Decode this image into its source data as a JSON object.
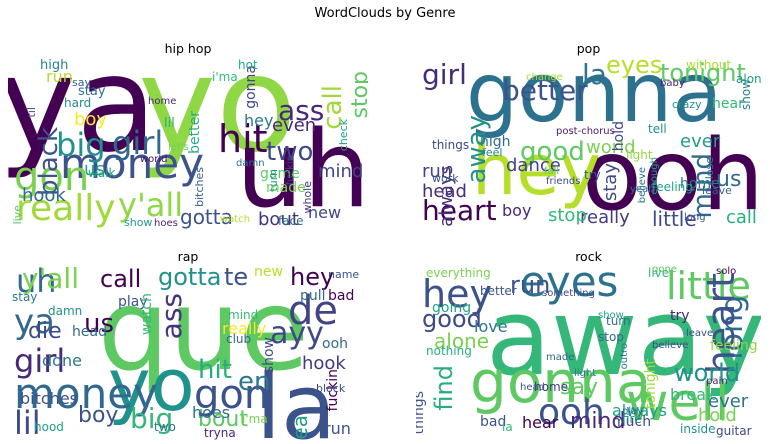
{
  "title": "WordClouds by Genre",
  "panels": [
    {
      "title": "hip hop",
      "words": [
        {
          "t": "yo",
          "c": "#8fd744"
        },
        {
          "t": "ya",
          "c": "#440154"
        },
        {
          "t": "uh",
          "c": "#440154"
        },
        {
          "t": "money",
          "c": "#3b528b"
        },
        {
          "t": "gon",
          "c": "#7ad151"
        },
        {
          "t": "big",
          "c": "#21918c"
        },
        {
          "t": "girl",
          "c": "#31688e"
        },
        {
          "t": "hit",
          "c": "#440154"
        },
        {
          "t": "really",
          "c": "#a0da39"
        },
        {
          "t": "y'all",
          "c": "#8fd744"
        },
        {
          "t": "black",
          "c": "#3b528b"
        },
        {
          "t": "call",
          "c": "#a0da39"
        },
        {
          "t": "stop",
          "c": "#5ec962"
        },
        {
          "t": "ass",
          "c": "#482878"
        },
        {
          "t": "two",
          "c": "#3e4989"
        },
        {
          "t": "hook",
          "c": "#31688e"
        },
        {
          "t": "gotta",
          "c": "#3b528b"
        },
        {
          "t": "bout",
          "c": "#46327e"
        },
        {
          "t": "new",
          "c": "#3e4989"
        },
        {
          "t": "even",
          "c": "#482878"
        },
        {
          "t": "boy",
          "c": "#fde725"
        },
        {
          "t": "mind",
          "c": "#414487"
        },
        {
          "t": "better",
          "c": "#27ad81"
        },
        {
          "t": "us",
          "c": "#1f9e89"
        },
        {
          "t": "high",
          "c": "#26828e"
        },
        {
          "t": "run",
          "c": "#b5de2b"
        },
        {
          "t": "i'ma",
          "c": "#35b779"
        },
        {
          "t": "gonna",
          "c": "#404688"
        },
        {
          "t": "hey",
          "c": "#2a788e"
        },
        {
          "t": "game",
          "c": "#5ec962"
        },
        {
          "t": "made",
          "c": "#7ad151"
        },
        {
          "t": "hot",
          "c": "#22a884"
        },
        {
          "t": "walk",
          "c": "#20a486"
        },
        {
          "t": "check",
          "c": "#1fa188"
        },
        {
          "t": "face",
          "c": "#2c728e"
        },
        {
          "t": "show",
          "c": "#1f9a8a"
        },
        {
          "t": "hoes",
          "c": "#481f70"
        },
        {
          "t": "hard",
          "c": "#238a8d"
        },
        {
          "t": "stay",
          "c": "#2d708e"
        },
        {
          "t": "home",
          "c": "#482475"
        },
        {
          "t": "lil",
          "c": "#29af7f"
        },
        {
          "t": "til",
          "c": "#3f4889"
        },
        {
          "t": "live",
          "c": "#52c569"
        },
        {
          "t": "say",
          "c": "#34608d"
        },
        {
          "t": "world",
          "c": "#471365"
        },
        {
          "t": "whole",
          "c": "#443983"
        },
        {
          "t": "bitches",
          "c": "#355f8d"
        },
        {
          "t": "damn",
          "c": "#2e6f8e"
        },
        {
          "t": "watch",
          "c": "#b8de29"
        },
        {
          "t": "let's",
          "c": "#6ece58"
        },
        {
          "t": "turn",
          "c": "#1e9b8a"
        },
        {
          "t": "fuckin",
          "c": "#424086"
        }
      ]
    },
    {
      "title": "pop",
      "words": [
        {
          "t": "gonna",
          "c": "#2c728e"
        },
        {
          "t": "ooh",
          "c": "#440154"
        },
        {
          "t": "hey",
          "c": "#b5de2b"
        },
        {
          "t": "girl",
          "c": "#472c7a"
        },
        {
          "t": "la",
          "c": "#2c728e"
        },
        {
          "t": "better",
          "c": "#3b528b"
        },
        {
          "t": "eyes",
          "c": "#b8de29"
        },
        {
          "t": "tonight",
          "c": "#5ec962"
        },
        {
          "t": "heart",
          "c": "#440154"
        },
        {
          "t": "boy",
          "c": "#482878"
        },
        {
          "t": "good",
          "c": "#5ec962"
        },
        {
          "t": "world",
          "c": "#7ad151"
        },
        {
          "t": "away",
          "c": "#21918c"
        },
        {
          "t": "always",
          "c": "#46327e"
        },
        {
          "t": "mind",
          "c": "#31688e"
        },
        {
          "t": "ever",
          "c": "#1f9e89"
        },
        {
          "t": "little",
          "c": "#3e4989"
        },
        {
          "t": "call",
          "c": "#27ad81"
        },
        {
          "t": "really",
          "c": "#443983"
        },
        {
          "t": "stop",
          "c": "#35b779"
        },
        {
          "t": "dance",
          "c": "#414487"
        },
        {
          "t": "hold",
          "c": "#3f4889"
        },
        {
          "t": "home",
          "c": "#2a788e"
        },
        {
          "t": "us",
          "c": "#31688e"
        },
        {
          "t": "run",
          "c": "#404688"
        },
        {
          "t": "head",
          "c": "#472d7b"
        },
        {
          "t": "stay",
          "c": "#3e4a89"
        },
        {
          "t": "long",
          "c": "#38588c"
        },
        {
          "t": "high",
          "c": "#2e6f8e"
        },
        {
          "t": "hear",
          "c": "#35b779"
        },
        {
          "t": "feeling",
          "c": "#20a486"
        },
        {
          "t": "light",
          "c": "#95d840"
        },
        {
          "t": "without",
          "c": "#a8db34"
        },
        {
          "t": "baby",
          "c": "#482173"
        },
        {
          "t": "things",
          "c": "#3f4788"
        },
        {
          "t": "post-chorus",
          "c": "#481a6c"
        },
        {
          "t": "believe",
          "c": "#2b748e"
        },
        {
          "t": "enough",
          "c": "#1fa187"
        },
        {
          "t": "try",
          "c": "#355f8d"
        },
        {
          "t": "close",
          "c": "#2a788e"
        },
        {
          "t": "tell",
          "c": "#21918c"
        },
        {
          "t": "leave",
          "c": "#34618d"
        },
        {
          "t": "alone",
          "c": "#1e9b8a"
        },
        {
          "t": "show",
          "c": "#277f8e"
        },
        {
          "t": "fall",
          "c": "#65cb5e"
        },
        {
          "t": "crazy",
          "c": "#20928c"
        },
        {
          "t": "feel",
          "c": "#25848e"
        },
        {
          "t": "work",
          "c": "#39568c"
        },
        {
          "t": "change",
          "c": "#a2da37"
        },
        {
          "t": "yeah",
          "c": "#2d718e"
        },
        {
          "t": "friends",
          "c": "#3d4d8a"
        }
      ]
    },
    {
      "title": "rap",
      "words": [
        {
          "t": "que",
          "c": "#5ec962"
        },
        {
          "t": "yo",
          "c": "#21918c"
        },
        {
          "t": "la",
          "c": "#3b528b"
        },
        {
          "t": "ya",
          "c": "#31688e"
        },
        {
          "t": "money",
          "c": "#31688e"
        },
        {
          "t": "uh",
          "c": "#31688e"
        },
        {
          "t": "y'all",
          "c": "#7ad151"
        },
        {
          "t": "call",
          "c": "#440154"
        },
        {
          "t": "gotta",
          "c": "#21918c"
        },
        {
          "t": "girl",
          "c": "#482878"
        },
        {
          "t": "lil",
          "c": "#3e4989"
        },
        {
          "t": "boy",
          "c": "#3b528b"
        },
        {
          "t": "big",
          "c": "#35b779"
        },
        {
          "t": "bout",
          "c": "#5ec962"
        },
        {
          "t": "hit",
          "c": "#27ad81"
        },
        {
          "t": "gon",
          "c": "#3b528b"
        },
        {
          "t": "ayy",
          "c": "#3e4989"
        },
        {
          "t": "de",
          "c": "#414487"
        },
        {
          "t": "en",
          "c": "#2a788e"
        },
        {
          "t": "hey",
          "c": "#440154"
        },
        {
          "t": "lea",
          "c": "#1f9e89"
        },
        {
          "t": "ass",
          "c": "#46327e"
        },
        {
          "t": "te",
          "c": "#3b528b"
        },
        {
          "t": "us",
          "c": "#440154"
        },
        {
          "t": "die",
          "c": "#3e4989"
        },
        {
          "t": "hoes",
          "c": "#2c728e"
        },
        {
          "t": "hook",
          "c": "#443983"
        },
        {
          "t": "new",
          "c": "#b5de2b"
        },
        {
          "t": "really",
          "c": "#fde725"
        },
        {
          "t": "bitches",
          "c": "#3b528b"
        },
        {
          "t": "done",
          "c": "#2a788e"
        },
        {
          "t": "head",
          "c": "#31688e"
        },
        {
          "t": "play",
          "c": "#3b528b"
        },
        {
          "t": "watch",
          "c": "#35b779"
        },
        {
          "t": "hood",
          "c": "#20a486"
        },
        {
          "t": "fuckin",
          "c": "#440154"
        },
        {
          "t": "tryna",
          "c": "#482878"
        },
        {
          "t": "show",
          "c": "#3e4989"
        },
        {
          "t": "ooh",
          "c": "#31688e"
        },
        {
          "t": "run",
          "c": "#3b528b"
        },
        {
          "t": "i'ma",
          "c": "#7ad151"
        },
        {
          "t": "damn",
          "c": "#21918c"
        },
        {
          "t": "two",
          "c": "#2c728e"
        },
        {
          "t": "pull",
          "c": "#31688e"
        },
        {
          "t": "bad",
          "c": "#440154"
        },
        {
          "t": "mind",
          "c": "#35b779"
        },
        {
          "t": "block",
          "c": "#3e4989"
        },
        {
          "t": "stay",
          "c": "#2a788e"
        },
        {
          "t": "name",
          "c": "#3b528b"
        },
        {
          "t": "club",
          "c": "#31688e"
        }
      ]
    },
    {
      "title": "rock",
      "words": [
        {
          "t": "away",
          "c": "#35b779"
        },
        {
          "t": "gonna",
          "c": "#5ec962"
        },
        {
          "t": "well",
          "c": "#5ec962"
        },
        {
          "t": "eyes",
          "c": "#2c728e"
        },
        {
          "t": "hey",
          "c": "#3b528b"
        },
        {
          "t": "little",
          "c": "#5ec962"
        },
        {
          "t": "long",
          "c": "#31688e"
        },
        {
          "t": "heart",
          "c": "#3b528b"
        },
        {
          "t": "ooh",
          "c": "#3b528b"
        },
        {
          "t": "good",
          "c": "#3e4989"
        },
        {
          "t": "world",
          "c": "#21918c"
        },
        {
          "t": "run",
          "c": "#3b528b"
        },
        {
          "t": "find",
          "c": "#27ad81"
        },
        {
          "t": "mind",
          "c": "#482878"
        },
        {
          "t": "alone",
          "c": "#7ad151"
        },
        {
          "t": "always",
          "c": "#1f9e89"
        },
        {
          "t": "things",
          "c": "#3b528b"
        },
        {
          "t": "love",
          "c": "#2a788e"
        },
        {
          "t": "say",
          "c": "#5ec962"
        },
        {
          "t": "tonight",
          "c": "#a0da39"
        },
        {
          "t": "hold",
          "c": "#7ad151"
        },
        {
          "t": "ever",
          "c": "#2c728e"
        },
        {
          "t": "bad",
          "c": "#3b528b"
        },
        {
          "t": "la",
          "c": "#35b779"
        },
        {
          "t": "hear",
          "c": "#440154"
        },
        {
          "t": "much",
          "c": "#3e4989"
        },
        {
          "t": "feeling",
          "c": "#8fd744"
        },
        {
          "t": "stop",
          "c": "#31688e"
        },
        {
          "t": "nothing",
          "c": "#27ad81"
        },
        {
          "t": "better",
          "c": "#3b528b"
        },
        {
          "t": "going",
          "c": "#20a486"
        },
        {
          "t": "light",
          "c": "#2a788e"
        },
        {
          "t": "home",
          "c": "#443983"
        },
        {
          "t": "made",
          "c": "#31688e"
        },
        {
          "t": "inside",
          "c": "#21918c"
        },
        {
          "t": "guitar",
          "c": "#3e4989"
        },
        {
          "t": "break",
          "c": "#35b779"
        },
        {
          "t": "try",
          "c": "#482878"
        },
        {
          "t": "turn",
          "c": "#2c728e"
        },
        {
          "t": "leave",
          "c": "#3b528b"
        },
        {
          "t": "gone",
          "c": "#5ec962"
        },
        {
          "t": "solo",
          "c": "#440154"
        },
        {
          "t": "everything",
          "c": "#7ad151"
        },
        {
          "t": "something",
          "c": "#3e4989"
        },
        {
          "t": "fire",
          "c": "#21918c"
        },
        {
          "t": "play",
          "c": "#31688e"
        },
        {
          "t": "show",
          "c": "#1f9e89"
        },
        {
          "t": "head",
          "c": "#3b528b"
        },
        {
          "t": "live",
          "c": "#35b779"
        },
        {
          "t": "pain",
          "c": "#482878"
        },
        {
          "t": "outro",
          "c": "#2a788e"
        },
        {
          "t": "believe",
          "c": "#3e4989"
        }
      ]
    }
  ]
}
